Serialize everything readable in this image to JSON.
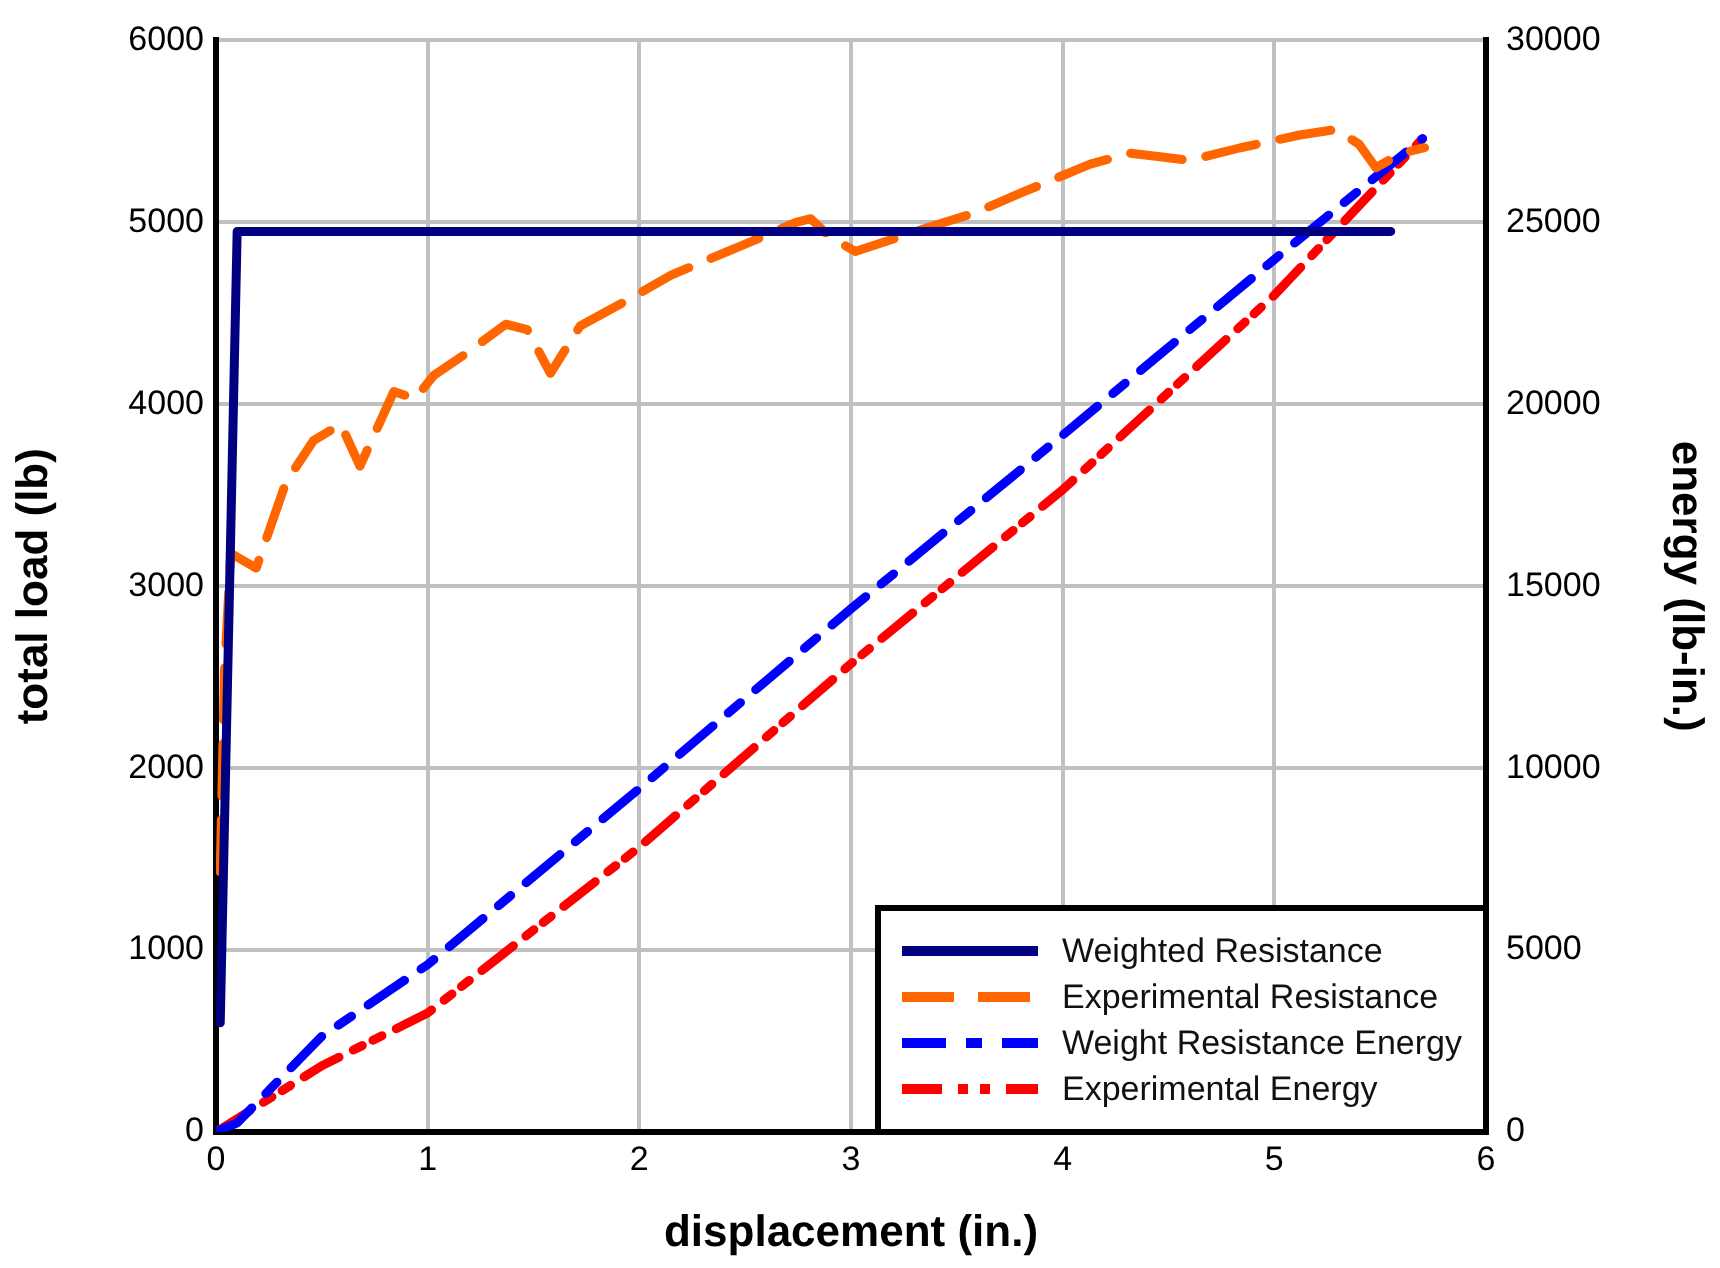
{
  "chart_data": {
    "type": "line",
    "xlabel": "displacement (in.)",
    "ylabel": "total load (lb)",
    "y2label": "energy (lb-in.)",
    "xlim": [
      0,
      6
    ],
    "xticks": [
      0,
      1,
      2,
      3,
      4,
      5,
      6
    ],
    "ylim": [
      0,
      6000
    ],
    "yticks": [
      0,
      1000,
      2000,
      3000,
      4000,
      5000,
      6000
    ],
    "y2lim": [
      0,
      30000
    ],
    "y2ticks": [
      0,
      5000,
      10000,
      15000,
      20000,
      25000,
      30000
    ],
    "grid": true,
    "legend": "bottom right",
    "marker": "none",
    "series": [
      {
        "name": "Weighted Resistance",
        "color": "#000080",
        "line_style": "solid",
        "x": [
          0.02,
          0.1,
          5.55
        ],
        "values": [
          600,
          4950,
          4950
        ]
      },
      {
        "name": "Experimental Resistance",
        "color": "#ff6600",
        "line_style": "dashed",
        "x": [
          0.02,
          0.04,
          0.07,
          0.19,
          0.33,
          0.46,
          0.59,
          0.68,
          0.84,
          0.94,
          1.03,
          1.17,
          1.37,
          1.47,
          1.58,
          1.72,
          1.94,
          2.15,
          2.5,
          2.74,
          2.81,
          2.9,
          3.02,
          3.36,
          3.58,
          3.8,
          4.13,
          4.32,
          4.46,
          4.6,
          4.84,
          5.12,
          5.29,
          5.4,
          5.48,
          5.6,
          5.71
        ],
        "values": [
          1430,
          2530,
          3180,
          3100,
          3570,
          3800,
          3890,
          3660,
          4070,
          4030,
          4160,
          4270,
          4440,
          4410,
          4170,
          4430,
          4570,
          4710,
          4880,
          5000,
          5020,
          4920,
          4840,
          4970,
          5050,
          5160,
          5320,
          5380,
          5360,
          5340,
          5410,
          5480,
          5510,
          5430,
          5300,
          5380,
          5410
        ]
      },
      {
        "name": "Weight Resistance Energy",
        "color": "#0000ff",
        "line_style": "dashed",
        "axis": "y2",
        "x": [
          0,
          0.1,
          0.5,
          1,
          2,
          3,
          4,
          5,
          5.7
        ],
        "values": [
          0,
          250,
          2630,
          4600,
          9440,
          14380,
          19150,
          23980,
          27300
        ]
      },
      {
        "name": "Experimental Energy",
        "color": "#ff0000",
        "line_style": "dashed",
        "axis": "y2",
        "x": [
          0,
          0.5,
          1,
          2,
          3,
          4,
          5,
          5.7
        ],
        "values": [
          0,
          1820,
          3270,
          7830,
          12870,
          17650,
          23000,
          27300
        ]
      }
    ]
  }
}
